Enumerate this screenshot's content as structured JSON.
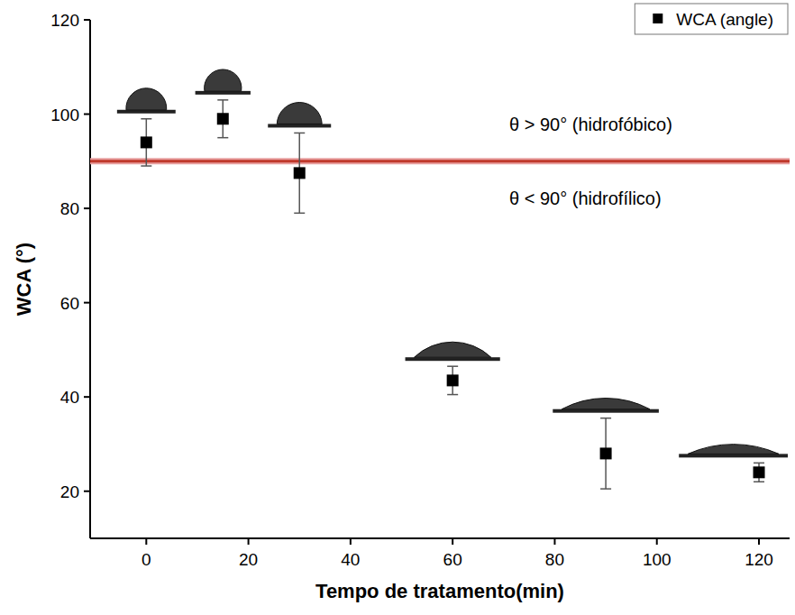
{
  "chart_data": {
    "type": "scatter",
    "x_label": "Tempo de tratamento(min)",
    "y_label": "WCA (°)",
    "x": [
      0,
      15,
      30,
      60,
      90,
      120
    ],
    "series": [
      {
        "name": "WCA (angle)",
        "color": "#000000",
        "marker": "square",
        "values": [
          94,
          99,
          87.5,
          43.5,
          28,
          24
        ],
        "errors": [
          5,
          4,
          8.5,
          3,
          7.5,
          2
        ]
      }
    ],
    "xlim": [
      -11,
      126
    ],
    "xticks": [
      0,
      20,
      40,
      60,
      80,
      100,
      120
    ],
    "ylim": [
      10,
      120
    ],
    "yticks": [
      20,
      40,
      60,
      80,
      100,
      120
    ],
    "legend": "upper right",
    "threshold": 90,
    "annotations": [
      "θ > 90° (hidrofóbico)",
      "θ < 90° (hidrofílico)"
    ]
  }
}
